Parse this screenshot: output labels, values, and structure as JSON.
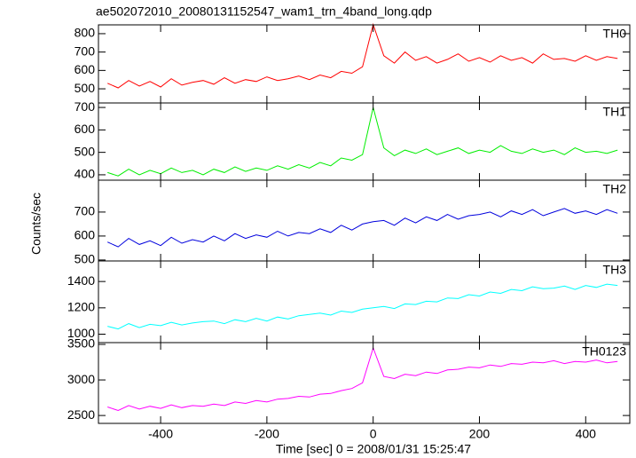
{
  "chart_data": {
    "type": "line",
    "title": "ae502072010_20080131152547_wam1_trn_4band_long.qdp",
    "xlabel": "Time [sec] 0 = 2008/01/31 15:25:47",
    "ylabel": "Counts/sec",
    "xlim": [
      -517,
      483
    ],
    "xticks": [
      -400,
      -200,
      0,
      200,
      400
    ],
    "x": [
      -500,
      -480,
      -460,
      -440,
      -420,
      -400,
      -380,
      -360,
      -340,
      -320,
      -300,
      -280,
      -260,
      -240,
      -220,
      -200,
      -180,
      -160,
      -140,
      -120,
      -100,
      -80,
      -60,
      -40,
      -20,
      0,
      20,
      40,
      60,
      80,
      100,
      120,
      140,
      160,
      180,
      200,
      220,
      240,
      260,
      280,
      300,
      320,
      340,
      360,
      380,
      400,
      420,
      440,
      460
    ],
    "series": [
      {
        "name": "TH0",
        "color": "#ff0000",
        "ylim": [
          423,
          848
        ],
        "yticks": [
          500,
          600,
          700,
          800
        ],
        "values": [
          530,
          505,
          545,
          515,
          540,
          510,
          555,
          520,
          535,
          545,
          525,
          560,
          530,
          550,
          540,
          565,
          545,
          555,
          570,
          550,
          575,
          560,
          595,
          585,
          620,
          850,
          680,
          640,
          700,
          655,
          675,
          640,
          660,
          690,
          650,
          670,
          645,
          680,
          655,
          670,
          640,
          690,
          660,
          665,
          650,
          680,
          655,
          675,
          665
        ]
      },
      {
        "name": "TH1",
        "color": "#00ee00",
        "ylim": [
          376,
          720
        ],
        "yticks": [
          400,
          500,
          600,
          700
        ],
        "values": [
          410,
          395,
          425,
          400,
          420,
          405,
          430,
          410,
          420,
          400,
          425,
          410,
          435,
          415,
          430,
          420,
          440,
          425,
          445,
          430,
          455,
          440,
          475,
          465,
          490,
          700,
          520,
          485,
          510,
          495,
          515,
          490,
          505,
          520,
          495,
          510,
          500,
          530,
          505,
          495,
          515,
          500,
          510,
          490,
          520,
          500,
          505,
          495,
          510
        ]
      },
      {
        "name": "TH2",
        "color": "#0000dd",
        "ylim": [
          496,
          833
        ],
        "yticks": [
          500,
          600,
          700
        ],
        "values": [
          575,
          555,
          590,
          565,
          580,
          560,
          595,
          570,
          585,
          575,
          600,
          580,
          610,
          590,
          605,
          595,
          620,
          600,
          615,
          610,
          630,
          615,
          645,
          625,
          650,
          660,
          665,
          645,
          675,
          655,
          680,
          665,
          690,
          670,
          685,
          690,
          700,
          680,
          705,
          690,
          710,
          685,
          700,
          715,
          695,
          705,
          690,
          710,
          695
        ]
      },
      {
        "name": "TH3",
        "color": "#00ffff",
        "ylim": [
          936,
          1556
        ],
        "yticks": [
          1000,
          1200,
          1400
        ],
        "values": [
          1060,
          1040,
          1080,
          1050,
          1075,
          1065,
          1090,
          1070,
          1085,
          1095,
          1100,
          1080,
          1110,
          1095,
          1120,
          1100,
          1130,
          1115,
          1140,
          1150,
          1160,
          1145,
          1175,
          1165,
          1190,
          1200,
          1210,
          1195,
          1230,
          1225,
          1250,
          1245,
          1275,
          1270,
          1300,
          1290,
          1320,
          1310,
          1340,
          1330,
          1360,
          1345,
          1350,
          1365,
          1340,
          1370,
          1355,
          1380,
          1370
        ]
      },
      {
        "name": "TH0123",
        "color": "#ff00ff",
        "ylim": [
          2389,
          3525
        ],
        "yticks": [
          2500,
          3000,
          3500
        ],
        "values": [
          2620,
          2570,
          2640,
          2590,
          2630,
          2600,
          2650,
          2610,
          2640,
          2630,
          2660,
          2640,
          2690,
          2670,
          2710,
          2690,
          2730,
          2740,
          2770,
          2760,
          2800,
          2810,
          2850,
          2880,
          2960,
          3450,
          3050,
          3020,
          3080,
          3060,
          3110,
          3090,
          3140,
          3150,
          3180,
          3170,
          3210,
          3190,
          3230,
          3220,
          3250,
          3240,
          3270,
          3230,
          3260,
          3250,
          3280,
          3240,
          3260
        ]
      }
    ]
  }
}
